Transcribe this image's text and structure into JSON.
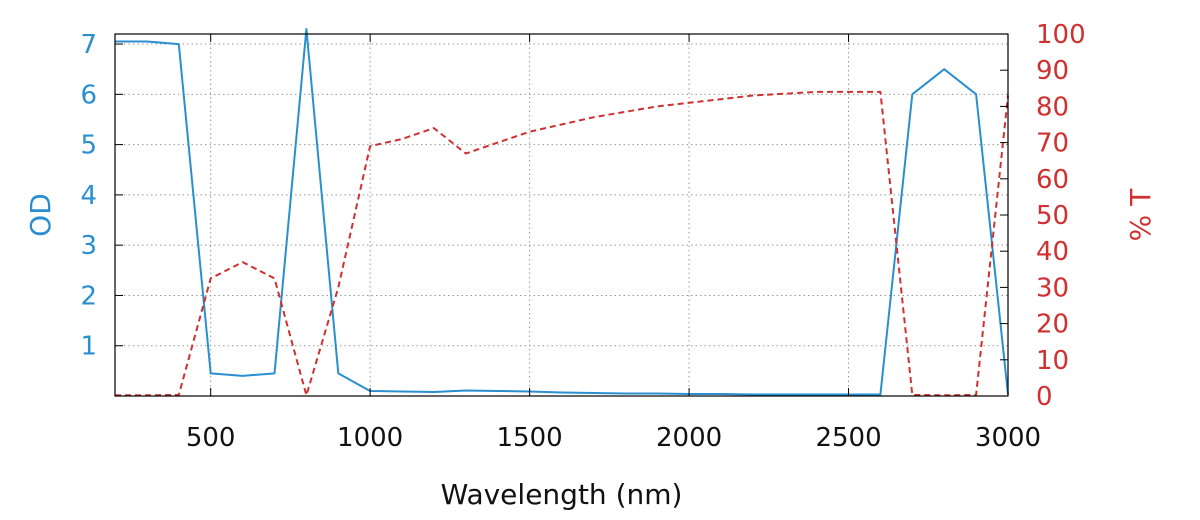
{
  "chart_data": {
    "type": "line",
    "title": "",
    "xlabel": "Wavelength (nm)",
    "ylabel": "OD",
    "y2label": "% T",
    "xlim": [
      200,
      3000
    ],
    "ylim": [
      0,
      7.2
    ],
    "y2lim": [
      0,
      100
    ],
    "x_ticks": [
      500,
      1000,
      1500,
      2000,
      2500,
      3000
    ],
    "y_ticks": [
      1,
      2,
      3,
      4,
      5,
      6,
      7
    ],
    "y2_ticks": [
      0,
      10,
      20,
      30,
      40,
      50,
      60,
      70,
      80,
      90,
      100
    ],
    "grid": true,
    "colors": {
      "od": "#2a8fd0",
      "t": "#d03030"
    },
    "series": [
      {
        "axis": "left",
        "style": "solid",
        "x": [
          200,
          300,
          400,
          500,
          600,
          700,
          800,
          900,
          1000,
          1100,
          1200,
          1300,
          1400,
          1500,
          1600,
          1700,
          1800,
          1900,
          2000,
          2100,
          2200,
          2300,
          2400,
          2500,
          2600,
          2700,
          2800,
          2900,
          3000
        ],
        "values": [
          7.05,
          7.05,
          7.0,
          0.45,
          0.4,
          0.45,
          7.3,
          0.45,
          0.1,
          0.09,
          0.08,
          0.11,
          0.1,
          0.09,
          0.07,
          0.06,
          0.05,
          0.05,
          0.04,
          0.04,
          0.03,
          0.03,
          0.03,
          0.03,
          0.03,
          6.0,
          6.5,
          6.0,
          0.03
        ]
      },
      {
        "axis": "right",
        "style": "dashed",
        "x": [
          200,
          300,
          400,
          500,
          600,
          700,
          800,
          900,
          1000,
          1100,
          1200,
          1300,
          1400,
          1500,
          1600,
          1700,
          1800,
          1900,
          2000,
          2100,
          2200,
          2300,
          2400,
          2500,
          2600,
          2700,
          2800,
          2900,
          3000
        ],
        "values": [
          0.2,
          0.2,
          0.3,
          32.5,
          37,
          32.5,
          0.2,
          30,
          69,
          71,
          74,
          67,
          70,
          73,
          75,
          77,
          78.5,
          80,
          81,
          82,
          83,
          83.5,
          84,
          84,
          84,
          0.3,
          0.2,
          0.3,
          83
        ]
      }
    ]
  }
}
